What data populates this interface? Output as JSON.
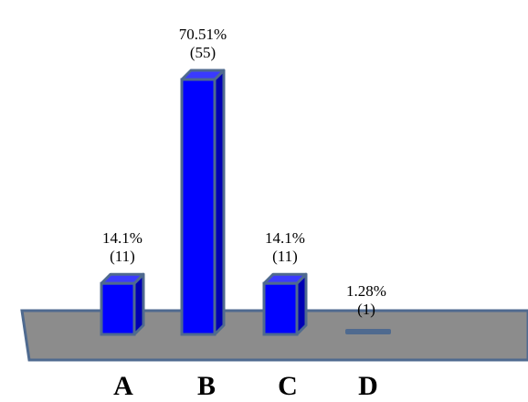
{
  "chart_data": {
    "type": "bar",
    "style": "3d-column",
    "categories": [
      "A",
      "B",
      "C",
      "D"
    ],
    "values": [
      11,
      55,
      11,
      1
    ],
    "percentages": [
      "14.1%",
      "70.51%",
      "14.1%",
      "1.28%"
    ],
    "counts": [
      "(11)",
      "(55)",
      "(11)",
      "(1)"
    ],
    "title": "",
    "xlabel": "",
    "ylabel": "",
    "ylim": [
      0,
      55
    ],
    "grid": false,
    "legend": "none",
    "colors": {
      "bar_front": "#0000ff",
      "bar_side": "#0000b4",
      "bar_top": "#3a3aff",
      "bar_outline": "#4f6a8f",
      "floor": "#8c8c8c",
      "floor_outline": "#4f6a8f",
      "empty_bar": "#4f6a8f"
    }
  }
}
